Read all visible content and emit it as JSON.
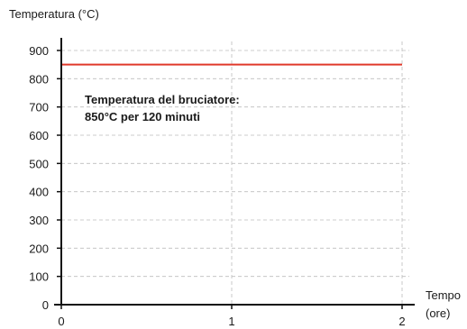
{
  "chart_data": {
    "type": "line",
    "ylabel": "Temperatura (°C)",
    "xlabel_line1": "Tempo",
    "xlabel_line2": "(ore)",
    "ylim": [
      0,
      900
    ],
    "xlim": [
      0,
      2
    ],
    "yticks": [
      0,
      100,
      200,
      300,
      400,
      500,
      600,
      700,
      800,
      900
    ],
    "xticks": [
      0,
      1,
      2
    ],
    "grid": true,
    "series": [
      {
        "x": [
          0,
          2
        ],
        "y": [
          850,
          850
        ],
        "color": "#e0392b"
      }
    ],
    "annotation": {
      "line1": "Temperatura del bruciatore:",
      "line2": "850°C per 120 minuti"
    }
  }
}
